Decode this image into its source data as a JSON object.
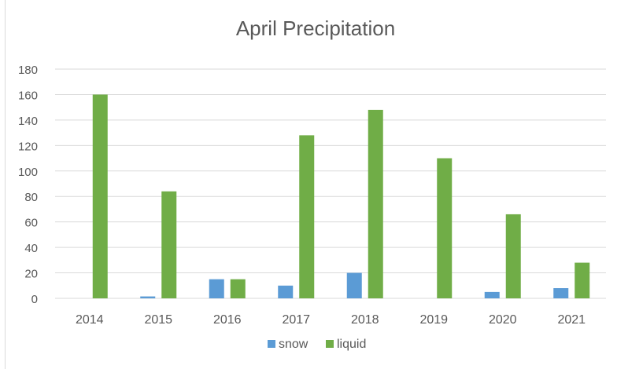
{
  "chart_data": {
    "type": "bar",
    "title": "April Precipitation",
    "categories": [
      "2014",
      "2015",
      "2016",
      "2017",
      "2018",
      "2019",
      "2020",
      "2021"
    ],
    "series": [
      {
        "name": "snow",
        "color": "#5b9bd5",
        "values": [
          0,
          1.5,
          15,
          10,
          20,
          0,
          5,
          8
        ]
      },
      {
        "name": "liquid",
        "color": "#70ad47",
        "values": [
          160,
          84,
          15,
          128,
          148,
          110,
          66,
          28
        ]
      }
    ],
    "ylim": [
      0,
      180
    ],
    "yticks": [
      0,
      20,
      40,
      60,
      80,
      100,
      120,
      140,
      160,
      180
    ],
    "grid": true,
    "legend": "bottom",
    "xlabel": "",
    "ylabel": ""
  }
}
